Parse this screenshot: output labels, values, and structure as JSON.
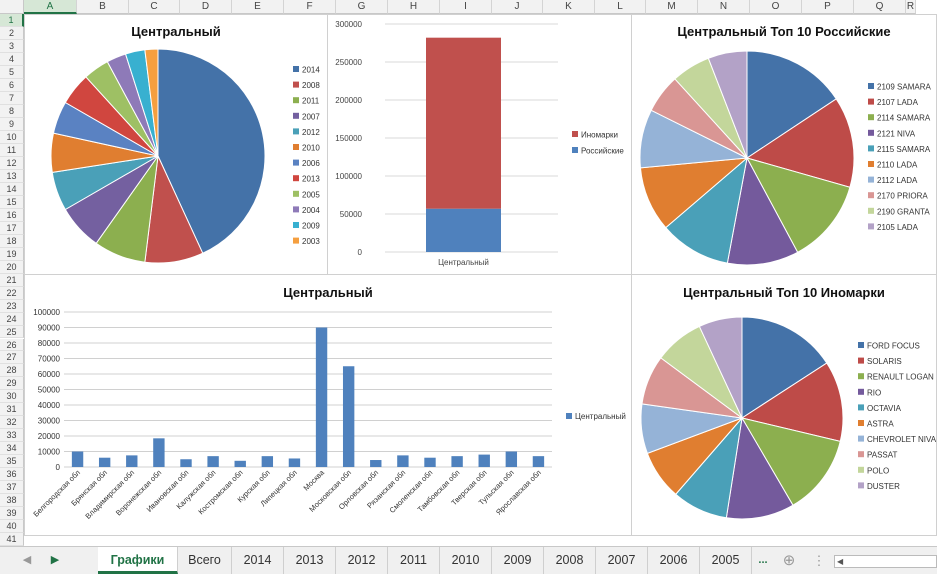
{
  "columns": [
    "A",
    "B",
    "C",
    "D",
    "E",
    "F",
    "G",
    "H",
    "I",
    "J",
    "K",
    "L",
    "M",
    "N",
    "O",
    "P",
    "Q",
    "R"
  ],
  "rows": [
    "1",
    "2",
    "3",
    "4",
    "5",
    "6",
    "7",
    "8",
    "9",
    "10",
    "11",
    "12",
    "13",
    "14",
    "15",
    "16",
    "17",
    "18",
    "19",
    "20",
    "21",
    "22",
    "23",
    "24",
    "25",
    "26",
    "27",
    "28",
    "29",
    "30",
    "31",
    "32",
    "33",
    "34",
    "35",
    "36",
    "37",
    "38",
    "39",
    "40",
    "41"
  ],
  "tabs": [
    {
      "label": "Графики",
      "active": true
    },
    {
      "label": "Всего"
    },
    {
      "label": "2014"
    },
    {
      "label": "2013"
    },
    {
      "label": "2012"
    },
    {
      "label": "2011"
    },
    {
      "label": "2010"
    },
    {
      "label": "2009"
    },
    {
      "label": "2008"
    },
    {
      "label": "2007"
    },
    {
      "label": "2006"
    },
    {
      "label": "2005"
    }
  ],
  "tab_more": "...",
  "add_sheet_icon": "plus-circle-icon",
  "colors": [
    "#4472a8",
    "#c0504d",
    "#8caf4f",
    "#7460a0",
    "#4aa0b8",
    "#e07e30",
    "#5a82c2",
    "#d0463f",
    "#9ec064",
    "#8e7ab8",
    "#38b0d0",
    "#f59f3f"
  ],
  "chart_data": [
    {
      "type": "pie",
      "title": "Центральный",
      "labels": [
        "2014",
        "2008",
        "2011",
        "2007",
        "2012",
        "2010",
        "2006",
        "2013",
        "2005",
        "2004",
        "2009",
        "2003"
      ],
      "values": [
        44,
        9,
        8,
        7,
        6,
        6,
        5,
        5,
        4,
        3,
        3,
        2
      ],
      "legend": "right"
    },
    {
      "type": "bar",
      "stacked": true,
      "title": "",
      "categories": [
        "Центральный"
      ],
      "series": [
        {
          "name": "Российские",
          "values": [
            57000
          ],
          "color": "#4f81bd"
        },
        {
          "name": "Иномарки",
          "values": [
            225000
          ],
          "color": "#c0504d"
        }
      ],
      "legend_order": [
        "Иномарки",
        "Российские"
      ],
      "ylim": [
        0,
        300000
      ],
      "yticks": [
        "0",
        "50000",
        "100000",
        "150000",
        "200000",
        "250000",
        "300000"
      ],
      "grid": true,
      "legend": "right"
    },
    {
      "type": "pie",
      "title": "Центральный Топ 10 Российские",
      "labels": [
        "2109 SAMARA",
        "2107 LADA",
        "2114 SAMARA",
        "2121 NIVA",
        "2115 SAMARA",
        "2110 LADA",
        "2112 LADA",
        "2170 PRIORA",
        "2190 GRANTA",
        "2105 LADA"
      ],
      "values": [
        16,
        14,
        13,
        11,
        11,
        10,
        9,
        6,
        6,
        6
      ],
      "colors": [
        "#4472a8",
        "#be4b48",
        "#8caf4f",
        "#745a9c",
        "#4aa0b8",
        "#e07e30",
        "#95b3d7",
        "#d99694",
        "#c3d69b",
        "#b3a2c7"
      ],
      "legend": "right"
    },
    {
      "type": "bar",
      "title": "Центральный",
      "categories": [
        "Белгородская обл",
        "Брянская обл",
        "Владимирская обл",
        "Воронежская обл",
        "Ивановская обл",
        "Калужская обл",
        "Костромская обл",
        "Курская обл",
        "Липецкая обл",
        "Москва",
        "Московская обл",
        "Орловская обл",
        "Рязанская обл",
        "Смоленская обл",
        "Тамбовская обл",
        "Тверская обл",
        "Тульская обл",
        "Ярославская обл"
      ],
      "series": [
        {
          "name": "Центральный",
          "values": [
            10000,
            6000,
            7500,
            18500,
            5000,
            7000,
            4000,
            7000,
            5500,
            90000,
            65000,
            4500,
            7500,
            6000,
            7000,
            8000,
            10000,
            7000
          ],
          "color": "#4f81bd"
        }
      ],
      "ylim": [
        0,
        100000
      ],
      "yticks": [
        "0",
        "10000",
        "20000",
        "30000",
        "40000",
        "50000",
        "60000",
        "70000",
        "80000",
        "90000",
        "100000"
      ],
      "grid": true,
      "legend": "right"
    },
    {
      "type": "pie",
      "title": "Центральный Топ 10 Иномарки",
      "labels": [
        "FORD FOCUS",
        "SOLARIS",
        "RENAULT LOGAN",
        "RIO",
        "OCTAVIA",
        "ASTRA",
        "CHEVROLET NIVA",
        "PASSAT",
        "POLO",
        "DUSTER"
      ],
      "values": [
        16,
        13,
        13,
        11,
        9,
        8,
        8,
        8,
        8,
        7
      ],
      "colors": [
        "#4472a8",
        "#be4b48",
        "#8caf4f",
        "#745a9c",
        "#4aa0b8",
        "#e07e30",
        "#95b3d7",
        "#d99694",
        "#c3d69b",
        "#b3a2c7"
      ],
      "legend": "right"
    }
  ]
}
